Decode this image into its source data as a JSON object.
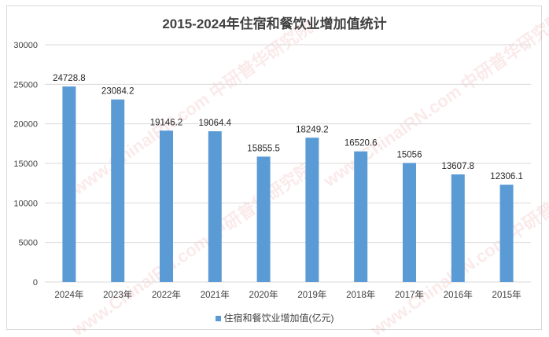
{
  "chart_data": {
    "type": "bar",
    "title": "2015-2024年住宿和餐饮业增加值统计",
    "categories": [
      "2024年",
      "2023年",
      "2022年",
      "2021年",
      "2020年",
      "2019年",
      "2018年",
      "2017年",
      "2016年",
      "2015年"
    ],
    "series": [
      {
        "name": "住宿和餐饮业增加值(亿元)",
        "values": [
          24728.8,
          23084.2,
          19146.2,
          19064.4,
          15855.5,
          18249.2,
          16520.6,
          15056,
          13607.8,
          12306.1
        ],
        "color": "#5b9bd5"
      }
    ],
    "data_labels": [
      "24728.8",
      "23084.2",
      "19146.2",
      "19064.4",
      "15855.5",
      "18249.2",
      "16520.6",
      "15056",
      "13607.8",
      "12306.1"
    ],
    "ylim": [
      0,
      30000
    ],
    "yticks": [
      "0",
      "5000",
      "10000",
      "15000",
      "20000",
      "25000",
      "30000"
    ],
    "grid": true,
    "legend_position": "bottom",
    "xlabel": "",
    "ylabel": ""
  },
  "watermark": "www.ChinaIRN.com 中研普华研究院"
}
